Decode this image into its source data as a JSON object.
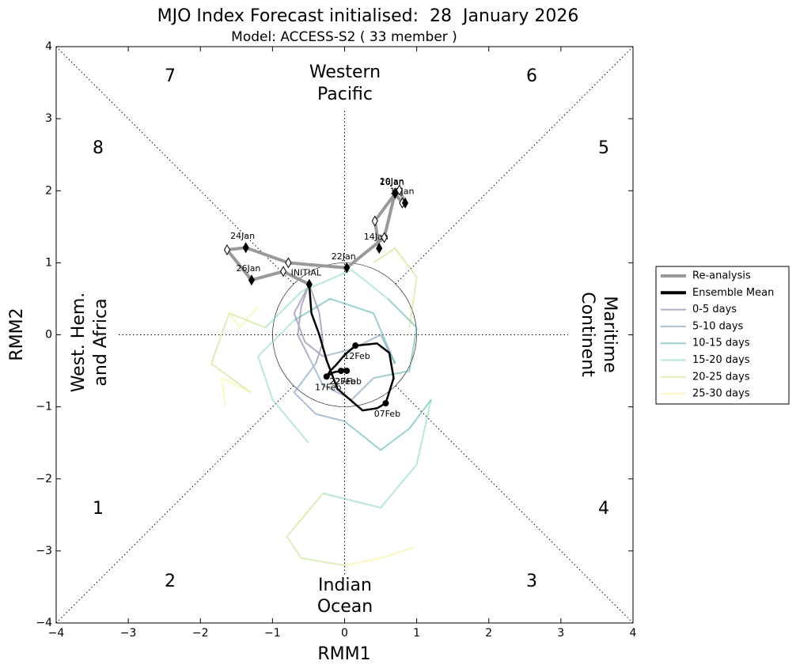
{
  "chart_data": {
    "type": "line",
    "title": "MJO Index Forecast initialised:  28  January 2026",
    "subtitle": "Model: ACCESS-S2 ( 33 member )",
    "xlabel": "RMM1",
    "ylabel": "RMM2",
    "xlim": [
      -4,
      4
    ],
    "ylim": [
      -4,
      4
    ],
    "xticks": [
      {
        "value": -4,
        "label": "−4"
      },
      {
        "value": -3,
        "label": "−3"
      },
      {
        "value": -2,
        "label": "−2"
      },
      {
        "value": -1,
        "label": "−1"
      },
      0,
      1,
      2,
      3,
      4
    ],
    "yticks": [
      {
        "value": -4,
        "label": "−4"
      },
      {
        "value": -3,
        "label": "−3"
      },
      {
        "value": -2,
        "label": "−2"
      },
      {
        "value": -1,
        "label": "−1"
      },
      0,
      1,
      2,
      3,
      4
    ],
    "phases": [
      "1",
      "2",
      "3",
      "4",
      "5",
      "6",
      "7",
      "8"
    ],
    "regions": {
      "top": [
        "Western",
        "Pacific"
      ],
      "bottom": [
        "Indian",
        "Ocean"
      ],
      "left": [
        "West. Hem.",
        "and Africa"
      ],
      "right": [
        "Maritime",
        "Continent"
      ]
    },
    "legend": "right",
    "series": [
      {
        "name": "Re-analysis",
        "color": "#999999",
        "style": "reanalysis",
        "x": [
          0.48,
          0.42,
          0.7,
          0.8,
          0.84,
          0.76,
          0.7,
          0.55,
          0.03,
          -0.78,
          -1.37,
          -1.63,
          -1.29,
          -0.85,
          -0.49
        ],
        "y": [
          1.2,
          1.58,
          1.96,
          1.83,
          1.83,
          2.01,
          1.97,
          1.35,
          0.93,
          1.0,
          1.21,
          1.18,
          0.76,
          0.88,
          0.7
        ],
        "point_labels": [
          "14Jan",
          null,
          "16Jan",
          null,
          "18Jan",
          null,
          "20Jan",
          null,
          "22Jan",
          null,
          "24Jan",
          null,
          "26Jan",
          null,
          "INITIAL"
        ]
      },
      {
        "name": "Ensemble Mean",
        "color": "#000000",
        "style": "mean",
        "x": [
          -0.49,
          -0.46,
          -0.35,
          -0.25,
          -0.1,
          0.25,
          0.45,
          0.57,
          0.68,
          0.62,
          0.45,
          0.15,
          0.0,
          -0.12,
          -0.2,
          -0.25,
          -0.15,
          -0.05,
          0.0,
          0.03
        ],
        "y": [
          0.7,
          0.3,
          0.0,
          -0.35,
          -0.75,
          -1.05,
          -1.02,
          -0.95,
          -0.6,
          -0.25,
          -0.12,
          -0.15,
          -0.28,
          -0.42,
          -0.5,
          -0.58,
          -0.52,
          -0.5,
          -0.48,
          -0.5
        ],
        "point_labels": [
          null,
          null,
          null,
          null,
          null,
          null,
          null,
          "07Feb",
          null,
          null,
          null,
          "12Feb",
          null,
          null,
          null,
          "17Feb",
          null,
          "22Feb",
          null,
          "27Feb"
        ]
      },
      {
        "name": "0-5 days",
        "color": "#6a5a8c",
        "style": "member",
        "x": [
          -0.49,
          -0.6,
          -0.65,
          -0.5,
          null,
          -0.49,
          -0.35,
          -0.3,
          -0.4,
          null,
          -0.49,
          -0.7,
          -0.55,
          -0.3
        ],
        "y": [
          0.7,
          0.4,
          0.0,
          -0.3,
          null,
          0.7,
          0.3,
          -0.1,
          -0.4,
          null,
          0.7,
          0.3,
          -0.1,
          -0.3
        ]
      },
      {
        "name": "5-10 days",
        "color": "#5f7fa8",
        "style": "member",
        "x": [
          -0.5,
          -0.3,
          0.1,
          0.4,
          null,
          -0.4,
          -0.7,
          -0.4,
          0.0,
          null,
          -0.3,
          0.1,
          0.5,
          0.7
        ],
        "y": [
          -0.3,
          -0.7,
          -0.9,
          -0.6,
          null,
          -0.4,
          -0.8,
          -1.1,
          -1.2,
          null,
          -0.3,
          -0.2,
          0.0,
          -0.4
        ]
      },
      {
        "name": "10-15 days",
        "color": "#3aa0a0",
        "style": "member",
        "x": [
          0.4,
          0.9,
          1.0,
          0.6,
          null,
          0.0,
          0.5,
          0.9,
          1.2,
          null,
          0.7,
          0.4,
          -0.2,
          -0.7
        ],
        "y": [
          -0.6,
          -0.5,
          0.1,
          0.5,
          null,
          -1.2,
          -1.6,
          -1.3,
          -0.9,
          null,
          -0.4,
          0.3,
          0.5,
          0.2
        ]
      },
      {
        "name": "15-20 days",
        "color": "#6fd3a8",
        "style": "member",
        "x": [
          0.6,
          0.1,
          -0.6,
          -1.1,
          null,
          1.2,
          1.0,
          0.5,
          -0.3,
          null,
          -0.7,
          -1.2,
          -1.0,
          -0.5
        ],
        "y": [
          0.5,
          0.9,
          0.6,
          0.1,
          null,
          -0.9,
          -1.8,
          -2.4,
          -2.2,
          null,
          0.2,
          -0.3,
          -0.9,
          -1.5
        ]
      },
      {
        "name": "20-25 days",
        "color": "#b8e070",
        "style": "member",
        "x": [
          -1.1,
          -1.6,
          -1.85,
          -1.3,
          null,
          -0.3,
          -0.8,
          -0.6,
          0.0,
          null,
          0.9,
          1.0,
          0.7,
          0.4
        ],
        "y": [
          0.1,
          0.3,
          -0.4,
          -0.8,
          null,
          -2.2,
          -2.8,
          -3.1,
          -3.2,
          null,
          0.1,
          0.8,
          1.2,
          1.0
        ]
      },
      {
        "name": "25-30 days",
        "color": "#fcf088",
        "style": "member",
        "x": [
          -1.3,
          -1.7,
          -1.65,
          null,
          0.0,
          0.5,
          0.97,
          null,
          -1.2,
          -1.45,
          -1.6
        ],
        "y": [
          -0.8,
          -0.6,
          -1.0,
          null,
          -3.2,
          -3.1,
          -2.95,
          null,
          0.4,
          0.1,
          0.3
        ]
      }
    ]
  }
}
